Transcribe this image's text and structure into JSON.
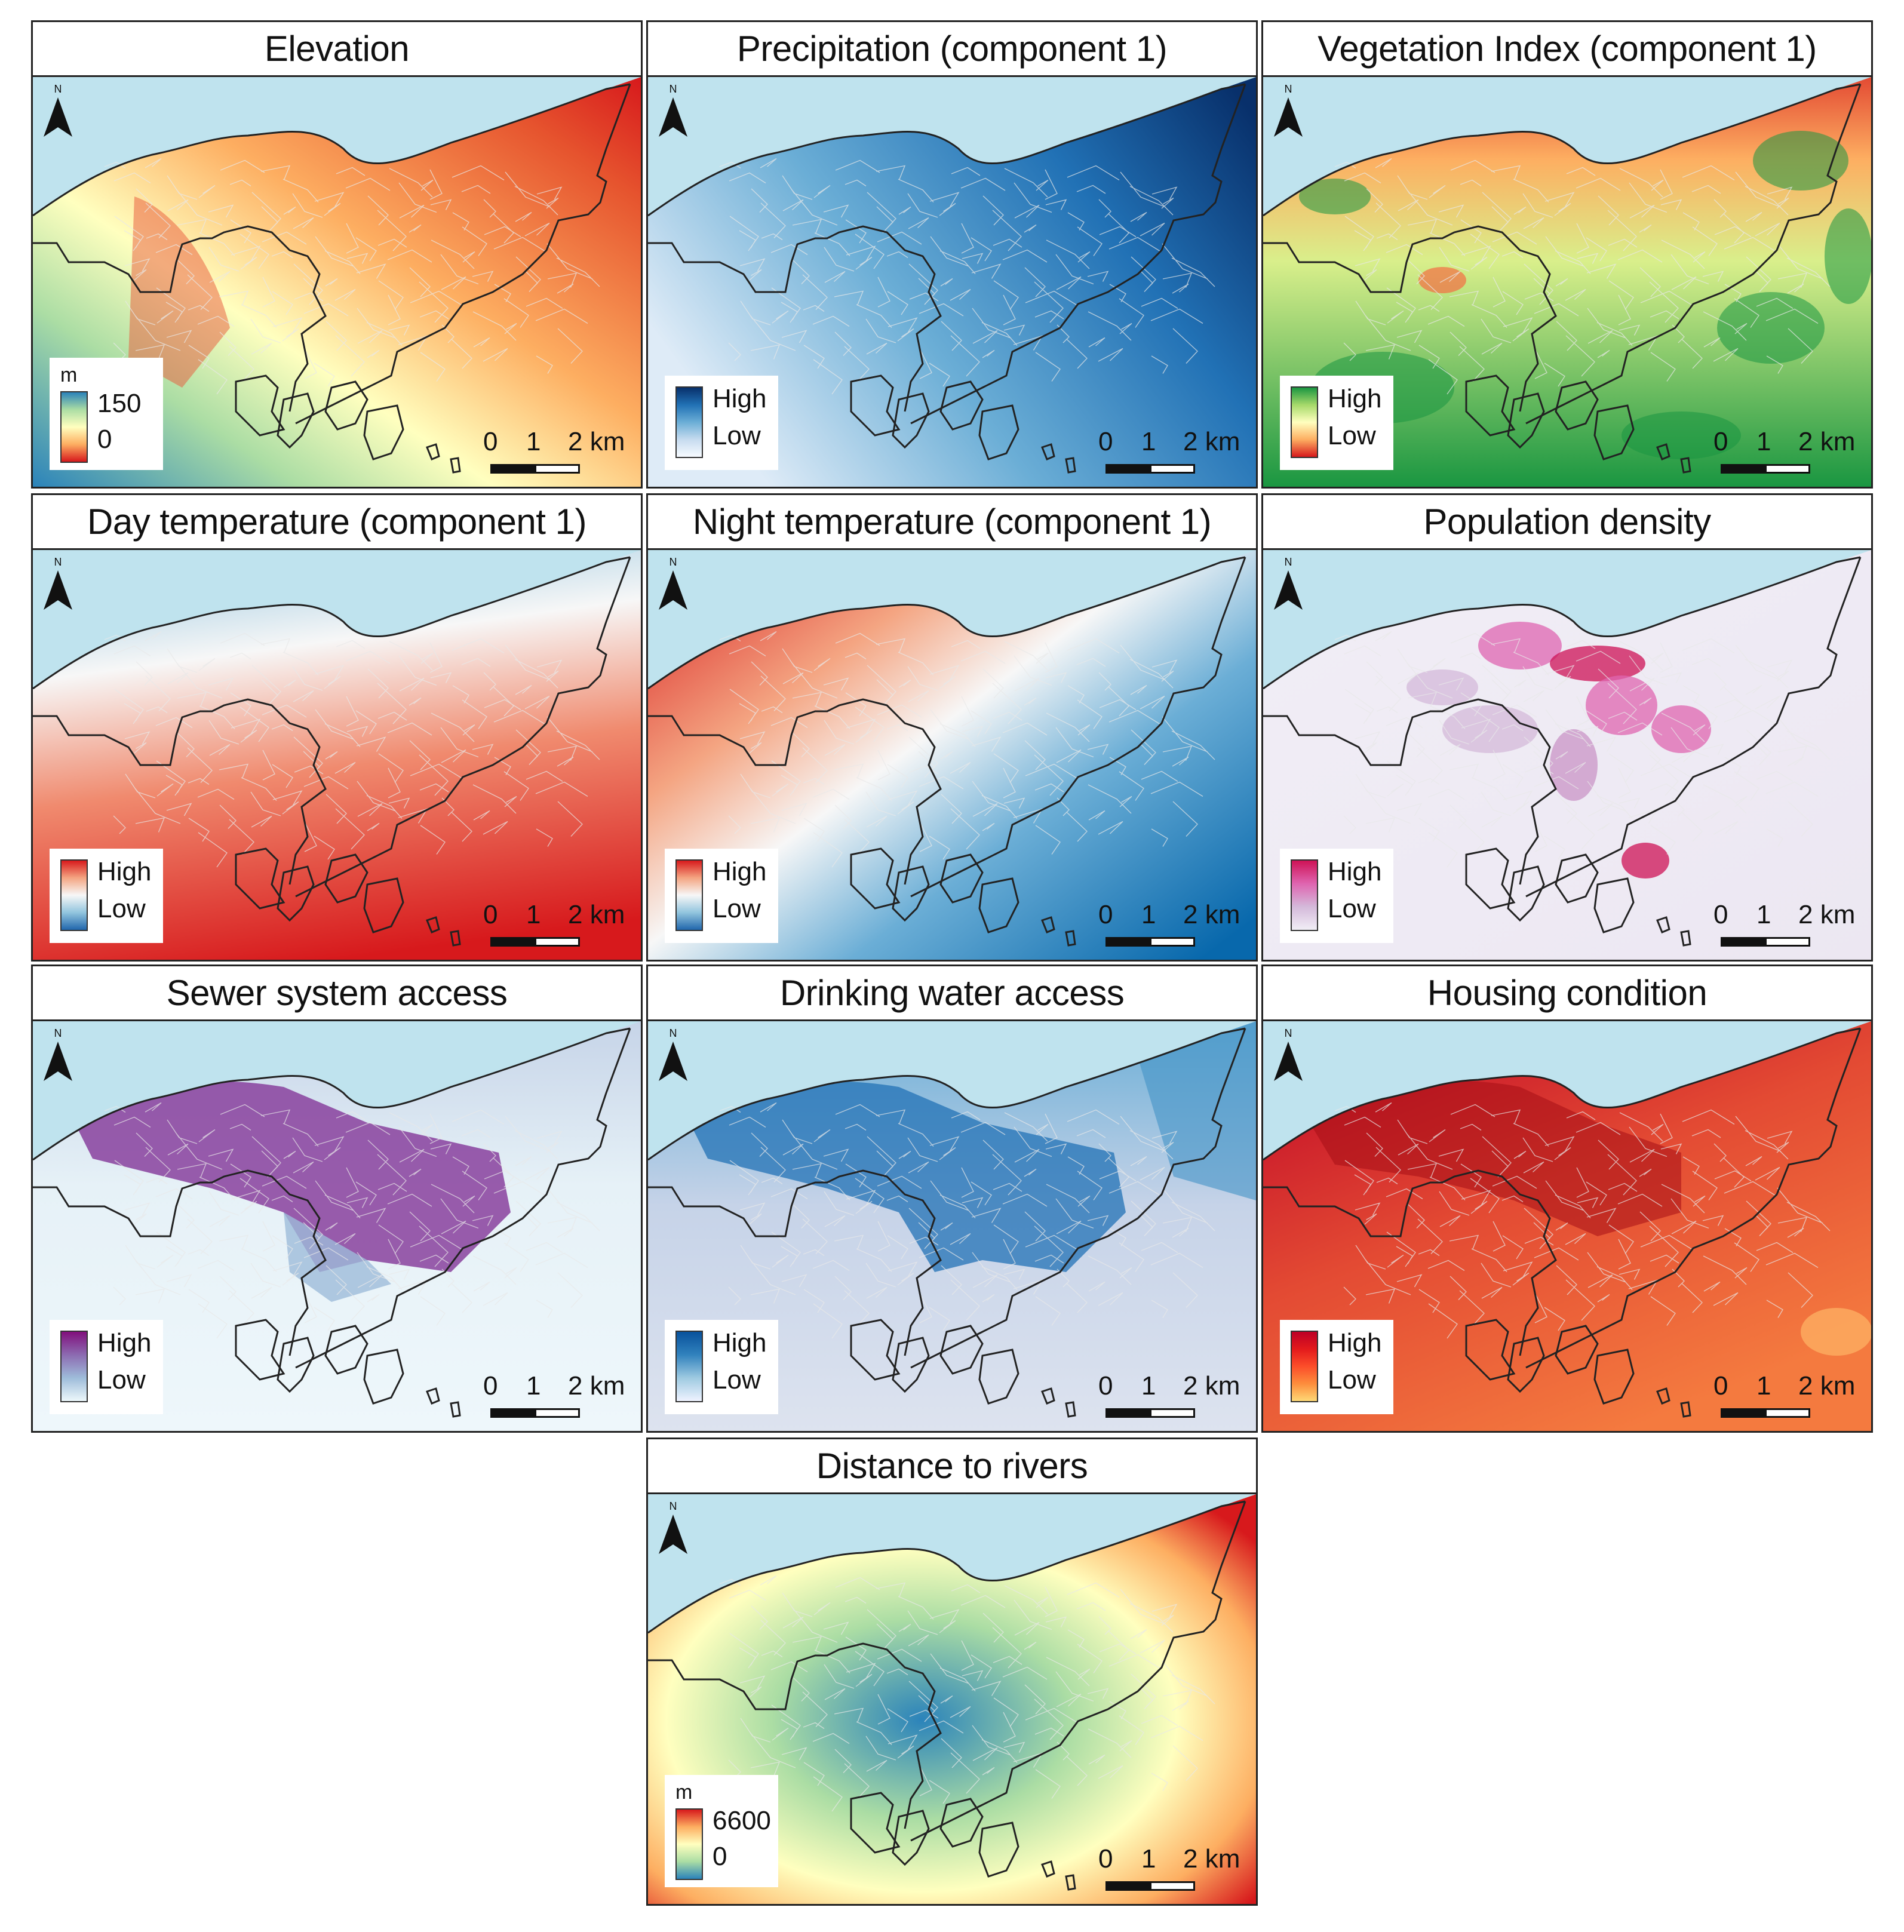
{
  "panels": [
    {
      "title": "Elevation",
      "legend": {
        "unit": "m",
        "max": "150",
        "min": "0",
        "colors": [
          "#2b83ba",
          "#abdda4",
          "#ffffbf",
          "#fdae61",
          "#d7191c"
        ]
      },
      "palette": "elevation"
    },
    {
      "title": "Precipitation (component 1)",
      "legend": {
        "unit": "",
        "max": "High",
        "min": "Low",
        "colors": [
          "#08306b",
          "#2171b5",
          "#6baed6",
          "#c6dbef",
          "#f7fbff"
        ]
      },
      "palette": "precip"
    },
    {
      "title": "Vegetation Index (component 1)",
      "legend": {
        "unit": "",
        "max": "High",
        "min": "Low",
        "colors": [
          "#1a9641",
          "#a6d96a",
          "#ffffbf",
          "#fdae61",
          "#d7191c"
        ]
      },
      "palette": "veg"
    },
    {
      "title": "Day temperature (component 1)",
      "legend": {
        "unit": "",
        "max": "High",
        "min": "Low",
        "colors": [
          "#d7191c",
          "#f4a582",
          "#f7f7f7",
          "#92c5de",
          "#2166ac"
        ]
      },
      "palette": "day"
    },
    {
      "title": "Night temperature (component 1)",
      "legend": {
        "unit": "",
        "max": "High",
        "min": "Low",
        "colors": [
          "#d7191c",
          "#f4a582",
          "#f7f7f7",
          "#92c5de",
          "#2166ac"
        ]
      },
      "palette": "night"
    },
    {
      "title": "Population density",
      "legend": {
        "unit": "",
        "max": "High",
        "min": "Low",
        "colors": [
          "#ce1256",
          "#df65b0",
          "#d4b9da",
          "#f1eef6"
        ]
      },
      "palette": "pop"
    },
    {
      "title": "Sewer system access",
      "legend": {
        "unit": "",
        "max": "High",
        "min": "Low",
        "colors": [
          "#810f7c",
          "#8c6bb1",
          "#9ebcda",
          "#edf8fb"
        ]
      },
      "palette": "sewer"
    },
    {
      "title": "Drinking water access",
      "legend": {
        "unit": "",
        "max": "High",
        "min": "Low",
        "colors": [
          "#08519c",
          "#3182bd",
          "#9ecae1",
          "#eff3ff"
        ]
      },
      "palette": "water"
    },
    {
      "title": "Housing condition",
      "legend": {
        "unit": "",
        "max": "High",
        "min": "Low",
        "colors": [
          "#bd0026",
          "#e31a1c",
          "#fc4e2a",
          "#fd8d3c",
          "#fed976"
        ]
      },
      "palette": "housing"
    },
    {
      "title": "Distance to rivers",
      "legend": {
        "unit": "m",
        "max": "6600",
        "min": "0",
        "colors": [
          "#d7191c",
          "#fdae61",
          "#ffffbf",
          "#abdda4",
          "#2b83ba"
        ]
      },
      "palette": "rivers"
    }
  ],
  "north_label": "N",
  "scale": {
    "labels": [
      "0",
      "1",
      "2 km"
    ]
  },
  "colors": {
    "sea": "#bfe3ee",
    "boundary": "#222222",
    "wards": "#e8e8e8"
  }
}
